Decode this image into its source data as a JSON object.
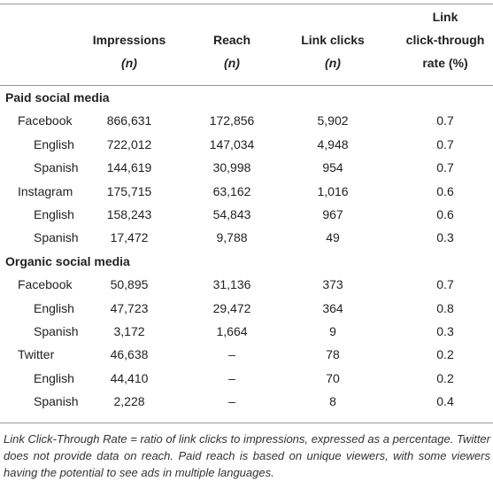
{
  "table": {
    "columns": [
      {
        "lines": [
          "Impressions",
          "(n)"
        ]
      },
      {
        "lines": [
          "Reach",
          "(n)"
        ]
      },
      {
        "lines": [
          "Link clicks",
          "(n)"
        ]
      },
      {
        "lines": [
          "Link",
          "click-through",
          "rate (%)"
        ]
      }
    ],
    "sections": [
      {
        "title": "Paid social media",
        "rows": [
          {
            "label": "Facebook",
            "level": 1,
            "cells": [
              "866,631",
              "172,856",
              "5,902",
              "0.7"
            ]
          },
          {
            "label": "English",
            "level": 2,
            "cells": [
              "722,012",
              "147,034",
              "4,948",
              "0.7"
            ]
          },
          {
            "label": "Spanish",
            "level": 2,
            "cells": [
              "144,619",
              "30,998",
              "954",
              "0.7"
            ]
          },
          {
            "label": "Instagram",
            "level": 1,
            "cells": [
              "175,715",
              "63,162",
              "1,016",
              "0.6"
            ]
          },
          {
            "label": "English",
            "level": 2,
            "cells": [
              "158,243",
              "54,843",
              "967",
              "0.6"
            ]
          },
          {
            "label": "Spanish",
            "level": 2,
            "cells": [
              "17,472",
              "9,788",
              "49",
              "0.3"
            ]
          }
        ]
      },
      {
        "title": "Organic social media",
        "rows": [
          {
            "label": "Facebook",
            "level": 1,
            "cells": [
              "50,895",
              "31,136",
              "373",
              "0.7"
            ]
          },
          {
            "label": "English",
            "level": 2,
            "cells": [
              "47,723",
              "29,472",
              "364",
              "0.8"
            ]
          },
          {
            "label": "Spanish",
            "level": 2,
            "cells": [
              "3,172",
              "1,664",
              "9",
              "0.3"
            ]
          },
          {
            "label": "Twitter",
            "level": 1,
            "cells": [
              "46,638",
              "–",
              "78",
              "0.2"
            ]
          },
          {
            "label": "English",
            "level": 2,
            "cells": [
              "44,410",
              "–",
              "70",
              "0.2"
            ]
          },
          {
            "label": "Spanish",
            "level": 2,
            "cells": [
              "2,228",
              "–",
              "8",
              "0.4"
            ]
          }
        ]
      }
    ],
    "footnote": "Link Click-Through Rate = ratio of link clicks to impressions, expressed as a percentage. Twitter does not provide data on reach. Paid reach is based on unique viewers, with some viewers having the potential to see ads in multiple languages."
  }
}
